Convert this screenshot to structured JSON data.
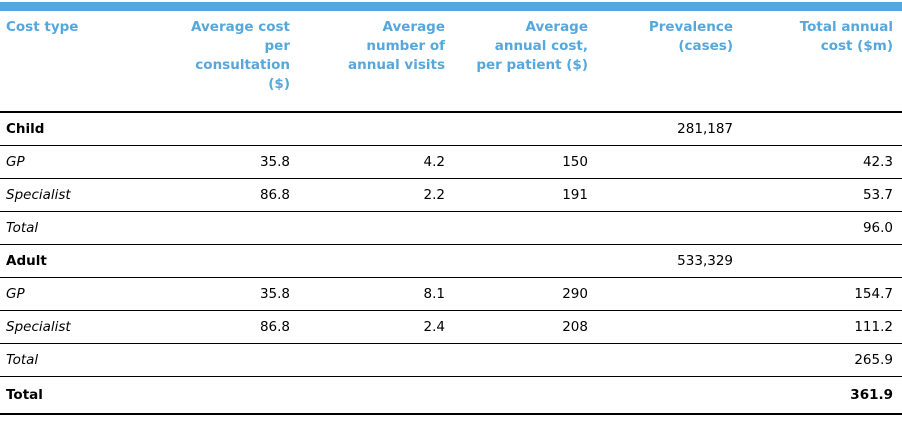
{
  "accent_color": "#56a7db",
  "table": {
    "columns": [
      {
        "key": "cost-type",
        "label": "Cost type",
        "align": "left"
      },
      {
        "key": "avg-cost-per-consultation",
        "label": "Average cost\nper\nconsultation\n($)",
        "align": "right"
      },
      {
        "key": "avg-number-annual-visits",
        "label": "Average\nnumber of\nannual visits",
        "align": "right"
      },
      {
        "key": "avg-annual-cost-per-patient",
        "label": "Average\nannual cost,\nper patient ($)",
        "align": "right"
      },
      {
        "key": "prevalence-cases",
        "label": "Prevalence\n(cases)",
        "align": "right"
      },
      {
        "key": "total-annual-cost",
        "label": "Total annual\ncost ($m)",
        "align": "right"
      }
    ],
    "rows": [
      {
        "label": "Child",
        "variant": "section",
        "values": [
          "",
          "",
          "",
          "281,187",
          ""
        ]
      },
      {
        "label": "GP",
        "variant": "item",
        "values": [
          "35.8",
          "4.2",
          "150",
          "",
          "42.3"
        ]
      },
      {
        "label": "Specialist",
        "variant": "item",
        "values": [
          "86.8",
          "2.2",
          "191",
          "",
          "53.7"
        ]
      },
      {
        "label": "Total",
        "variant": "item",
        "values": [
          "",
          "",
          "",
          "",
          "96.0"
        ]
      },
      {
        "label": "Adult",
        "variant": "section",
        "values": [
          "",
          "",
          "",
          "533,329",
          ""
        ]
      },
      {
        "label": "GP",
        "variant": "item",
        "values": [
          "35.8",
          "8.1",
          "290",
          "",
          "154.7"
        ]
      },
      {
        "label": "Specialist",
        "variant": "item",
        "values": [
          "86.8",
          "2.4",
          "208",
          "",
          "111.2"
        ]
      },
      {
        "label": "Total",
        "variant": "item",
        "values": [
          "",
          "",
          "",
          "",
          "265.9"
        ]
      },
      {
        "label": "Total",
        "variant": "grand",
        "values": [
          "",
          "",
          "",
          "",
          "361.9"
        ]
      }
    ]
  }
}
